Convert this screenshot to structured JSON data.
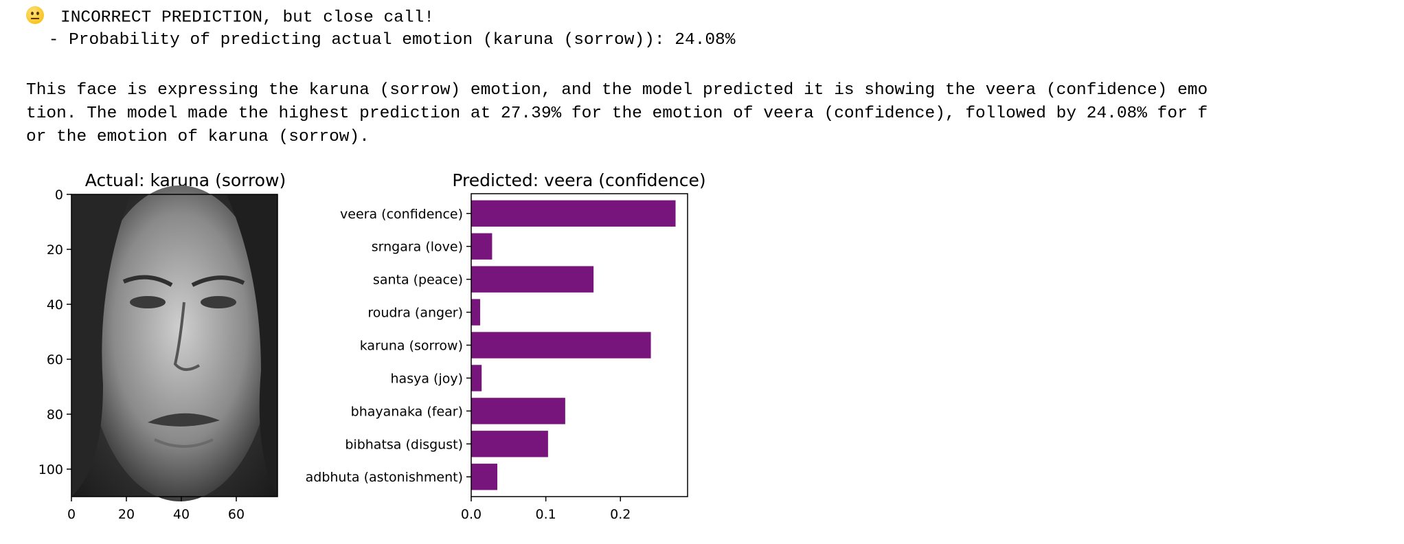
{
  "status": {
    "emoji_icon": "neutral-face-icon",
    "headline": "INCORRECT PREDICTION, but close call!",
    "probability_line": " - Probability of predicting actual emotion (karuna (sorrow)): 24.08%"
  },
  "description_lines": [
    "This face is expressing the karuna (sorrow) emotion, and the model predicted it is showing the veera (confidence) emo",
    "tion. The model made the highest prediction at 27.39% for the emotion of veera (confidence), followed by 24.08% for f",
    "or the emotion of karuna (sorrow)."
  ],
  "chart_data": [
    {
      "type": "image",
      "title": "Actual: karuna (sorrow)",
      "image_subject": "grayscale face of a woman expressing sorrow",
      "xticks": [
        "0",
        "20",
        "40",
        "60"
      ],
      "yticks": [
        "0",
        "20",
        "40",
        "60",
        "80",
        "100"
      ],
      "xlim": [
        0,
        75
      ],
      "ylim": [
        110,
        0
      ]
    },
    {
      "type": "bar",
      "orientation": "horizontal",
      "title": "Predicted: veera (confidence)",
      "categories": [
        "veera (confidence)",
        "srngara (love)",
        "santa (peace)",
        "roudra (anger)",
        "karuna (sorrow)",
        "hasya (joy)",
        "bhayanaka (fear)",
        "bibhatsa (disgust)",
        "adbhuta (astonishment)"
      ],
      "values": [
        0.2739,
        0.028,
        0.164,
        0.012,
        0.2408,
        0.014,
        0.126,
        0.103,
        0.035
      ],
      "xticks": [
        "0.0",
        "0.1",
        "0.2"
      ],
      "xlim": [
        0,
        0.29
      ],
      "bar_color": "#78157c"
    }
  ]
}
